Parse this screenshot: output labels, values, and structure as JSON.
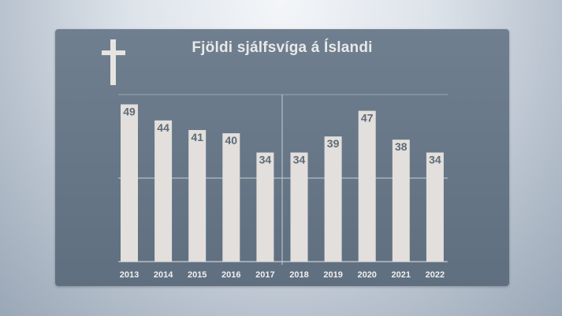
{
  "title": "Fjöldi sjálfsvíga á Íslandi",
  "icon": "cross-icon",
  "colors": {
    "panel": "#687888",
    "bar": "#e2dfdc",
    "value_text": "#5e6b78"
  },
  "chart_data": {
    "type": "bar",
    "title": "Fjöldi sjálfsvíga á Íslandi",
    "categories": [
      "2013",
      "2014",
      "2015",
      "2016",
      "2017",
      "2018",
      "2019",
      "2020",
      "2021",
      "2022"
    ],
    "values": [
      49,
      44,
      41,
      40,
      34,
      34,
      39,
      47,
      38,
      34
    ],
    "xlabel": "",
    "ylabel": "",
    "ylim": [
      0,
      55
    ],
    "data_labels": true,
    "grid": true
  }
}
